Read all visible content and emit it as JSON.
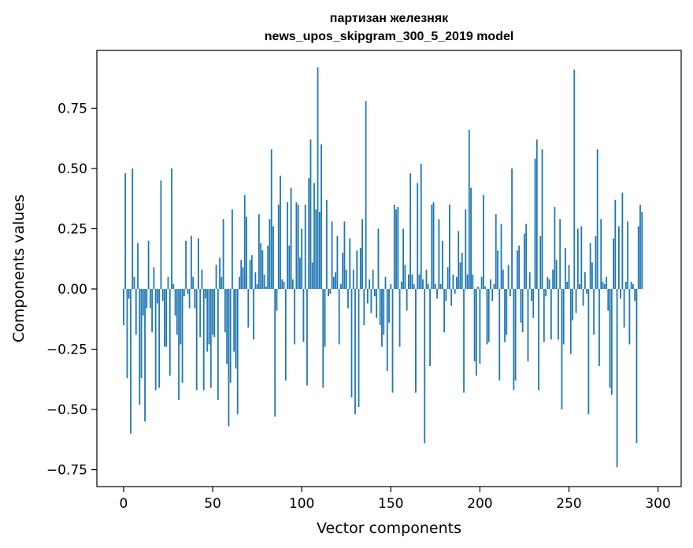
{
  "chart_data": {
    "type": "bar",
    "title": "партизан железняк",
    "subtitle": "news_upos_skipgram_300_5_2019 model",
    "xlabel": "Vector components",
    "ylabel": "Components values",
    "xlim": [
      -15,
      313
    ],
    "ylim": [
      -0.82,
      0.99
    ],
    "xticks": [
      0,
      50,
      100,
      150,
      200,
      250,
      300
    ],
    "xtick_labels": [
      "0",
      "50",
      "100",
      "150",
      "200",
      "250",
      "300"
    ],
    "yticks": [
      -0.75,
      -0.5,
      -0.25,
      0.0,
      0.25,
      0.5,
      0.75
    ],
    "ytick_labels": [
      "−0.75",
      "−0.50",
      "−0.25",
      "0.00",
      "0.25",
      "0.50",
      "0.75"
    ],
    "grid": false,
    "bar_color": "#1f77b4",
    "x_start": 0,
    "values": [
      -0.15,
      0.48,
      -0.37,
      -0.04,
      -0.6,
      0.5,
      0.05,
      -0.19,
      0.19,
      -0.48,
      -0.37,
      -0.11,
      -0.55,
      -0.08,
      0.2,
      -0.08,
      -0.18,
      0.09,
      -0.42,
      -0.06,
      -0.41,
      0.45,
      -0.05,
      -0.24,
      -0.24,
      0.05,
      -0.36,
      0.5,
      0.02,
      -0.11,
      -0.19,
      -0.46,
      -0.23,
      -0.39,
      -0.03,
      0.2,
      -0.02,
      -0.08,
      0.22,
      0.05,
      -0.08,
      -0.42,
      0.21,
      -0.2,
      0.08,
      -0.42,
      -0.04,
      -0.26,
      -0.23,
      -0.41,
      -0.19,
      -0.2,
      0.1,
      -0.46,
      0.13,
      0.05,
      0.29,
      -0.18,
      -0.31,
      -0.57,
      -0.39,
      0.33,
      -0.26,
      -0.33,
      -0.52,
      0.05,
      0.12,
      0.09,
      0.39,
      0.3,
      -0.16,
      0.12,
      0.14,
      -0.21,
      0.07,
      0.02,
      0.31,
      0.19,
      0.16,
      0.06,
      0.01,
      0.18,
      0.29,
      0.58,
      0.26,
      -0.53,
      -0.09,
      0.35,
      0.47,
      0.04,
      0.03,
      -0.38,
      0.36,
      0.18,
      0.42,
      0.04,
      -0.23,
      0.36,
      0.35,
      0.13,
      0.25,
      -0.22,
      0.35,
      -0.4,
      0.46,
      0.62,
      0.11,
      0.44,
      0.33,
      0.92,
      0.32,
      0.6,
      -0.41,
      -0.24,
      0.37,
      -0.03,
      -0.02,
      0.28,
      0.05,
      0.07,
      0.22,
      -0.23,
      0.02,
      0.15,
      0.28,
      0.08,
      -0.08,
      0.21,
      -0.45,
      0.08,
      -0.52,
      0.16,
      -0.49,
      0.17,
      0.29,
      -0.15,
      0.78,
      -0.06,
      0.04,
      -0.1,
      0.08,
      -0.03,
      -0.12,
      0.25,
      -0.15,
      -0.24,
      -0.19,
      0.05,
      -0.34,
      -0.14,
      0.02,
      -0.43,
      0.35,
      0.33,
      0.34,
      -0.24,
      0.03,
      0.25,
      0.1,
      -0.09,
      0.06,
      0.48,
      0.06,
      0.02,
      -0.43,
      0.44,
      0.06,
      0.52,
      0.04,
      -0.64,
      0.08,
      0.02,
      -0.32,
      0.35,
      0.36,
      0.02,
      -0.04,
      0.29,
      0.02,
      0.2,
      -0.18,
      -0.05,
      0.09,
      0.35,
      -0.07,
      0.06,
      -0.02,
      0.05,
      0.24,
      0.11,
      0.15,
      -0.43,
      0.33,
      0.06,
      0.66,
      0.42,
      0.06,
      -0.3,
      -0.36,
      0.01,
      -0.31,
      0.05,
      0.39,
      0.01,
      -0.23,
      -0.22,
      0.04,
      -0.05,
      0.02,
      0.31,
      0.16,
      -0.38,
      0.27,
      0.08,
      -0.22,
      -0.19,
      0.1,
      -0.03,
      0.5,
      -0.42,
      -0.38,
      0.16,
      0.18,
      -0.14,
      -0.18,
      0.23,
      0.27,
      -0.3,
      0.07,
      -0.05,
      -0.12,
      0.54,
      0.62,
      -0.42,
      0.22,
      0.58,
      -0.22,
      -0.03,
      0.05,
      0.04,
      -0.21,
      0.08,
      0.34,
      0.12,
      -0.21,
      0.29,
      -0.5,
      -0.23,
      0.17,
      0.03,
      0.1,
      -0.27,
      -0.13,
      0.91,
      -0.1,
      0.25,
      0.02,
      0.26,
      -0.07,
      0.07,
      -0.02,
      -0.52,
      0.19,
      0.11,
      -0.19,
      0.22,
      0.58,
      -0.32,
      0.29,
      0.03,
      0.02,
      0.05,
      -0.09,
      -0.41,
      -0.44,
      0.21,
      0.37,
      -0.74,
      0.26,
      -0.04,
      0.4,
      -0.16,
      0.03,
      0.28,
      -0.23,
      0.03,
      0.02,
      -0.05,
      -0.64,
      0.26,
      0.35,
      0.32
    ]
  }
}
